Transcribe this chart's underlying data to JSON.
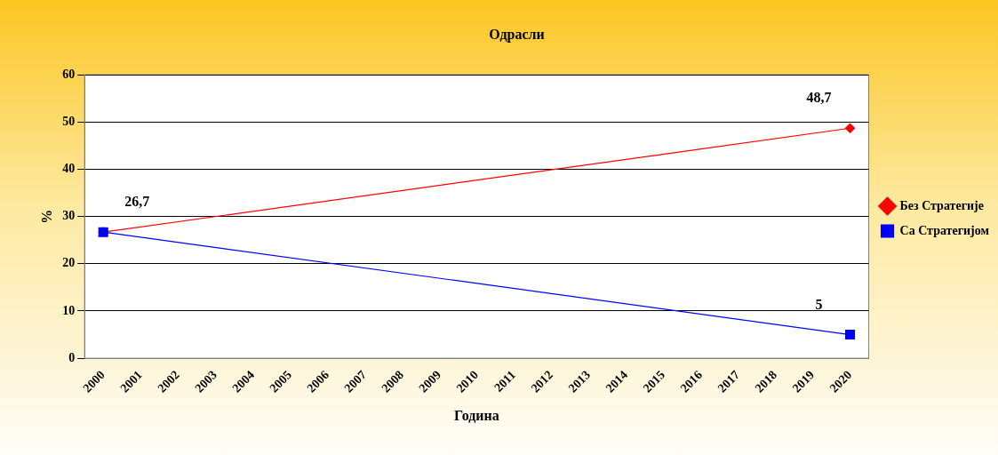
{
  "chart_data": {
    "type": "line",
    "title": "Одрасли",
    "xlabel": "Година",
    "ylabel": "%",
    "categories": [
      "2000",
      "2001",
      "2002",
      "2003",
      "2004",
      "2005",
      "2006",
      "2007",
      "2008",
      "2009",
      "2010",
      "2011",
      "2012",
      "2013",
      "2014",
      "2015",
      "2016",
      "2017",
      "2018",
      "2019",
      "2020"
    ],
    "series": [
      {
        "name": "Без Стратегије",
        "color": "#ff0000",
        "marker": "diamond",
        "values": [
          26.7,
          null,
          null,
          null,
          null,
          null,
          null,
          null,
          null,
          null,
          null,
          null,
          null,
          null,
          null,
          null,
          null,
          null,
          null,
          null,
          48.7
        ],
        "value_labels": [
          "26,7",
          null,
          null,
          null,
          null,
          null,
          null,
          null,
          null,
          null,
          null,
          null,
          null,
          null,
          null,
          null,
          null,
          null,
          null,
          null,
          "48,7"
        ]
      },
      {
        "name": "Са Стратегијом",
        "color": "#0000ff",
        "marker": "square",
        "values": [
          26.7,
          null,
          null,
          null,
          null,
          null,
          null,
          null,
          null,
          null,
          null,
          null,
          null,
          null,
          null,
          null,
          null,
          null,
          null,
          null,
          5
        ],
        "value_labels": [
          null,
          null,
          null,
          null,
          null,
          null,
          null,
          null,
          null,
          null,
          null,
          null,
          null,
          null,
          null,
          null,
          null,
          null,
          null,
          null,
          "5"
        ]
      }
    ],
    "ylim": [
      0,
      60
    ],
    "yticks": [
      0,
      10,
      20,
      30,
      40,
      50,
      60
    ],
    "grid": "y",
    "legend": "right"
  }
}
